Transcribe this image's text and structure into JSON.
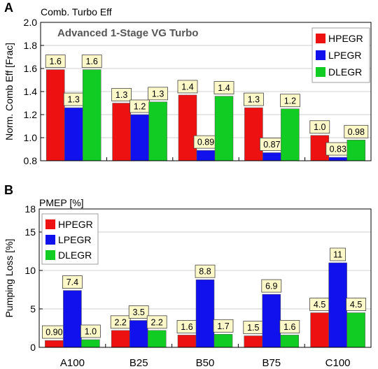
{
  "colors": {
    "HPEGR": "#ee1111",
    "LPEGR": "#1111ee",
    "DLEGR": "#11cc22",
    "label_bg": "#fdf8c8"
  },
  "chart_data": [
    {
      "type": "bar",
      "panel": "A",
      "title": "Comb. Turbo Eff",
      "subtitle": "Advanced 1-Stage VG Turbo",
      "ylabel": "Norm. Comb Eff  [Frac]",
      "ylim": [
        0.8,
        2.0
      ],
      "yticks": [
        "0.8",
        "1.0",
        "1.2",
        "1.4",
        "1.6",
        "1.8",
        "2.0"
      ],
      "categories": [
        "A100",
        "B25",
        "B50",
        "B75",
        "C100"
      ],
      "legend_position": "top-right",
      "series": [
        {
          "name": "HPEGR",
          "values": [
            1.59,
            1.3,
            1.37,
            1.26,
            1.02
          ],
          "labels": [
            "1.6",
            "1.3",
            "1.4",
            "1.3",
            "1.0"
          ]
        },
        {
          "name": "LPEGR",
          "values": [
            1.26,
            1.2,
            0.89,
            0.87,
            0.83
          ],
          "labels": [
            "1.3",
            "1.2",
            "0.89",
            "0.87",
            "0.83"
          ]
        },
        {
          "name": "DLEGR",
          "values": [
            1.59,
            1.31,
            1.36,
            1.25,
            0.98
          ],
          "labels": [
            "1.6",
            "1.3",
            "1.4",
            "1.2",
            "0.98"
          ]
        }
      ]
    },
    {
      "type": "bar",
      "panel": "B",
      "title": "PMEP [%]",
      "subtitle": "",
      "ylabel": "Pumping Loss [%]",
      "ylim": [
        0,
        18
      ],
      "yticks": [
        "0",
        "5",
        "10",
        "15",
        "18"
      ],
      "ytick_values": [
        0,
        5,
        10,
        15,
        18
      ],
      "categories": [
        "A100",
        "B25",
        "B50",
        "B75",
        "C100"
      ],
      "legend_position": "top-left",
      "series": [
        {
          "name": "HPEGR",
          "values": [
            0.9,
            2.2,
            1.6,
            1.5,
            4.5
          ],
          "labels": [
            "0.90",
            "2.2",
            "1.6",
            "1.5",
            "4.5"
          ]
        },
        {
          "name": "LPEGR",
          "values": [
            7.4,
            3.5,
            8.8,
            6.9,
            11
          ],
          "labels": [
            "7.4",
            "3.5",
            "8.8",
            "6.9",
            "11"
          ]
        },
        {
          "name": "DLEGR",
          "values": [
            1.0,
            2.2,
            1.7,
            1.6,
            4.5
          ],
          "labels": [
            "1.0",
            "2.2",
            "1.7",
            "1.6",
            "4.5"
          ]
        }
      ]
    }
  ]
}
